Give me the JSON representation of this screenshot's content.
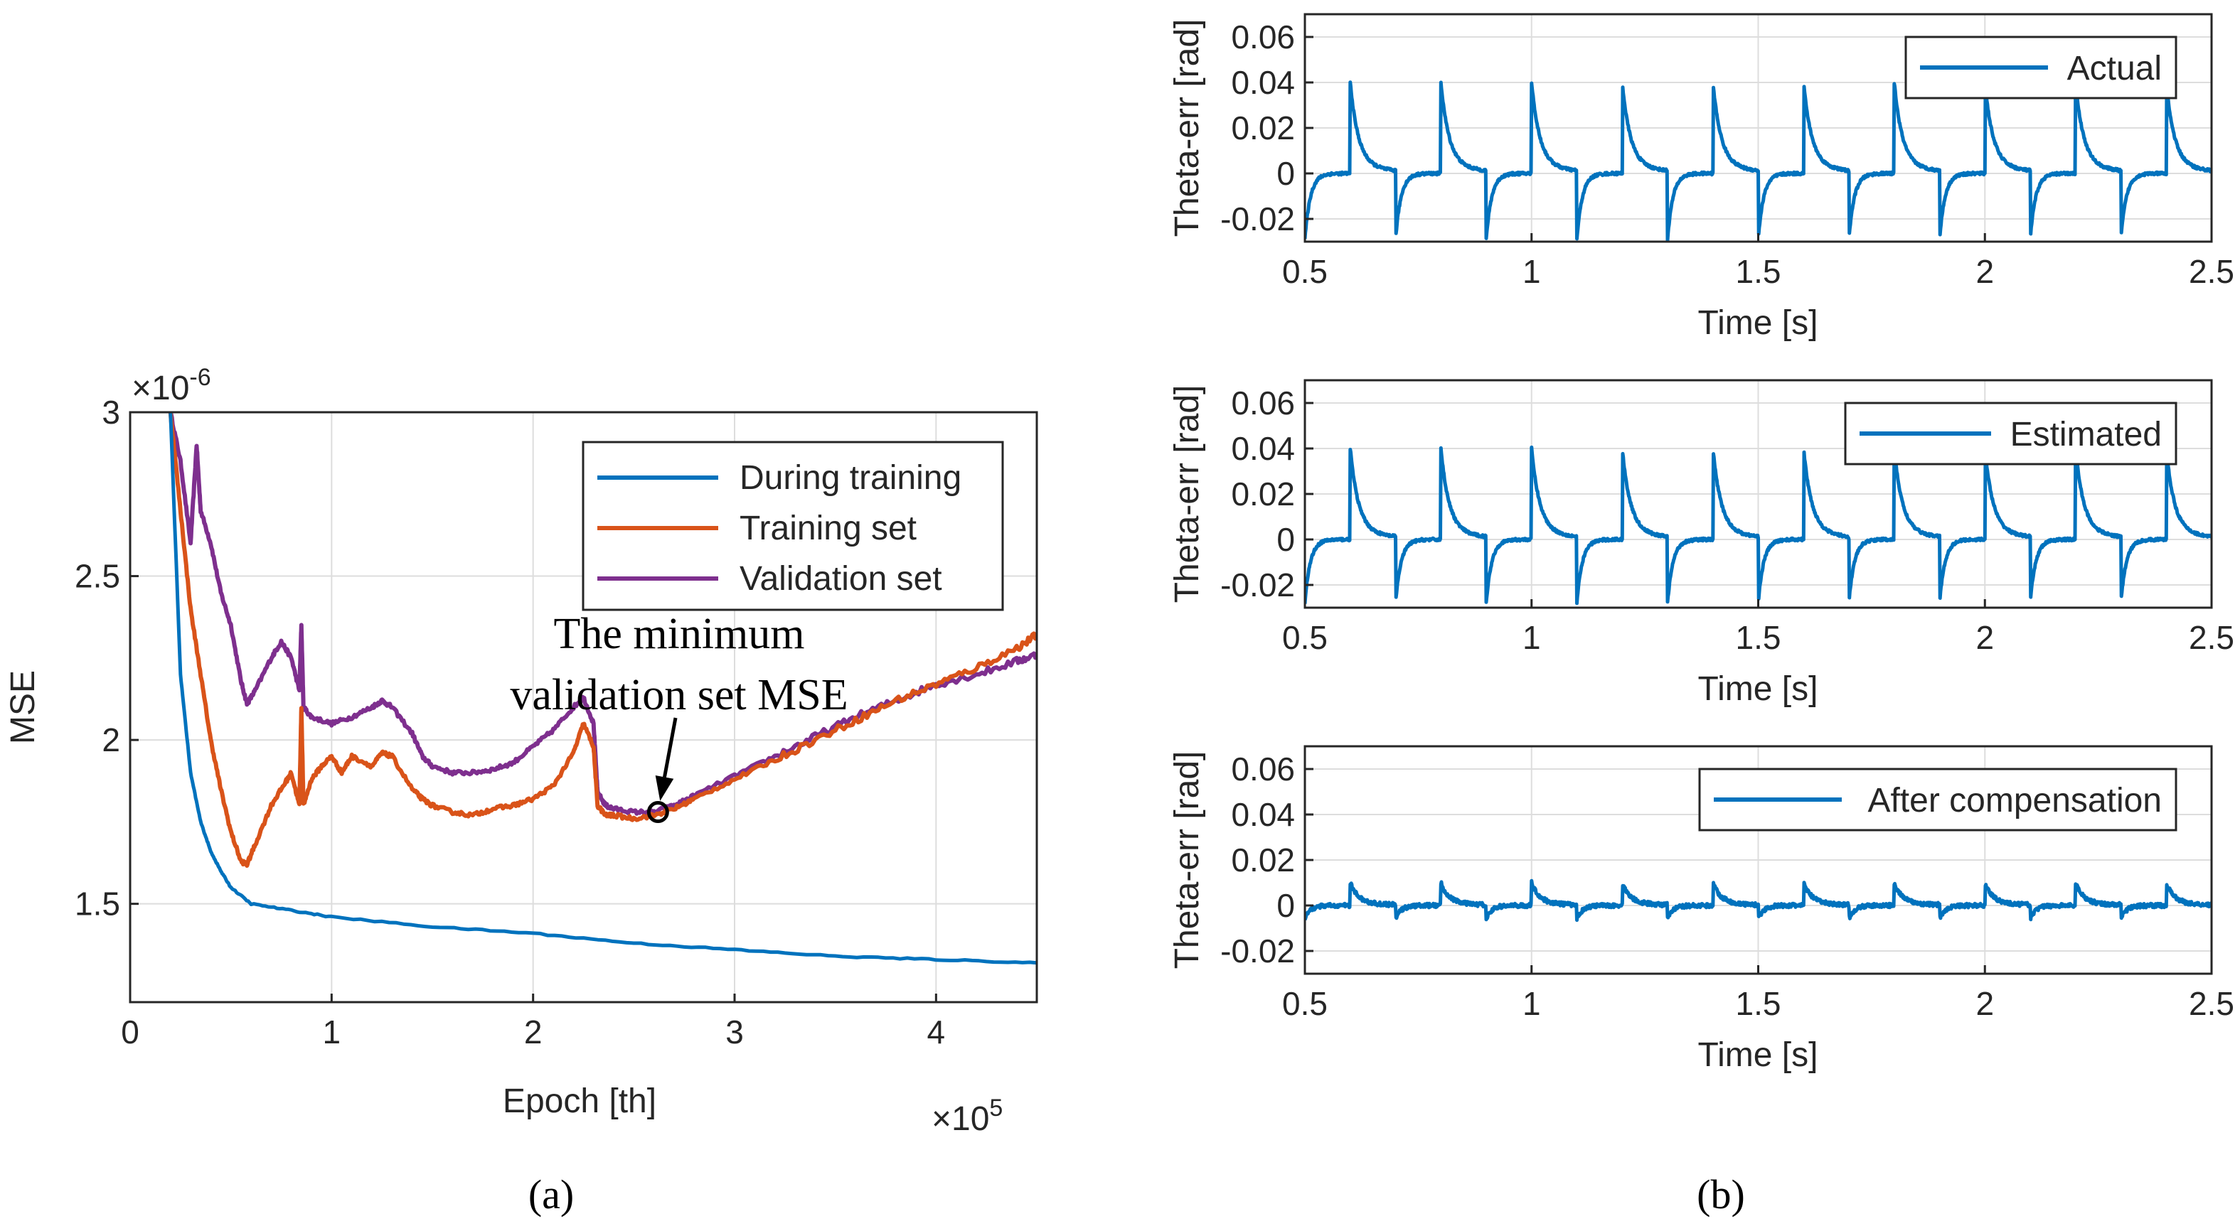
{
  "colors": {
    "blue": "#0072BD",
    "orange": "#D95319",
    "purple": "#7E2F8E",
    "grid": "#DDDDDD",
    "axis": "#262626"
  },
  "chart_data": [
    {
      "id": "a",
      "type": "line",
      "caption": "(a)",
      "xlabel": "Epoch [th]",
      "ylabel": "MSE",
      "y_multiplier": "×10",
      "y_multiplier_exp": "-6",
      "x_multiplier": "×10",
      "x_multiplier_exp": "5",
      "xlim": [
        0,
        4.5
      ],
      "ylim": [
        1.2,
        3.0
      ],
      "xticks": [
        0,
        1,
        2,
        3,
        4
      ],
      "xtick_labels": [
        "0",
        "1",
        "2",
        "3",
        "4"
      ],
      "yticks": [
        1.5,
        2.0,
        2.5,
        3.0
      ],
      "ytick_labels": [
        "1.5",
        "2",
        "2.5",
        "3"
      ],
      "grid": true,
      "legend_position": "top-right",
      "series": [
        {
          "name": "During training",
          "color": "#0072BD",
          "x": [
            0.2,
            0.25,
            0.3,
            0.35,
            0.4,
            0.45,
            0.5,
            0.6,
            0.8,
            1.0,
            1.5,
            2.0,
            2.5,
            3.0,
            3.5,
            4.0,
            4.5
          ],
          "y": [
            3.0,
            2.2,
            1.9,
            1.75,
            1.66,
            1.6,
            1.55,
            1.5,
            1.48,
            1.46,
            1.43,
            1.41,
            1.38,
            1.36,
            1.34,
            1.33,
            1.32
          ]
        },
        {
          "name": "Training set",
          "color": "#D95319",
          "x": [
            0.2,
            0.25,
            0.3,
            0.35,
            0.4,
            0.45,
            0.5,
            0.55,
            0.58,
            0.62,
            0.7,
            0.75,
            0.8,
            0.84,
            0.85,
            0.86,
            0.9,
            0.95,
            1.0,
            1.05,
            1.1,
            1.2,
            1.25,
            1.3,
            1.4,
            1.45,
            1.5,
            1.6,
            1.7,
            1.8,
            1.9,
            2.0,
            2.1,
            2.2,
            2.25,
            2.3,
            2.32,
            2.36,
            2.4,
            2.5,
            2.6,
            2.7,
            2.8,
            3.0,
            3.2,
            3.4,
            3.6,
            3.8,
            4.0,
            4.2,
            4.4,
            4.5
          ],
          "y": [
            3.0,
            2.7,
            2.4,
            2.2,
            2.0,
            1.85,
            1.72,
            1.63,
            1.62,
            1.68,
            1.8,
            1.85,
            1.9,
            1.8,
            2.1,
            1.8,
            1.88,
            1.92,
            1.95,
            1.9,
            1.95,
            1.92,
            1.96,
            1.95,
            1.85,
            1.82,
            1.8,
            1.78,
            1.77,
            1.79,
            1.8,
            1.82,
            1.86,
            1.96,
            2.05,
            1.98,
            1.8,
            1.77,
            1.77,
            1.76,
            1.77,
            1.79,
            1.82,
            1.88,
            1.94,
            2.0,
            2.06,
            2.12,
            2.17,
            2.22,
            2.28,
            2.32
          ]
        },
        {
          "name": "Validation set",
          "color": "#7E2F8E",
          "x": [
            0.2,
            0.25,
            0.3,
            0.33,
            0.35,
            0.4,
            0.45,
            0.5,
            0.55,
            0.58,
            0.62,
            0.7,
            0.75,
            0.8,
            0.84,
            0.85,
            0.86,
            0.9,
            1.0,
            1.1,
            1.2,
            1.25,
            1.3,
            1.4,
            1.45,
            1.5,
            1.6,
            1.7,
            1.8,
            1.9,
            2.0,
            2.1,
            2.2,
            2.25,
            2.3,
            2.32,
            2.36,
            2.4,
            2.5,
            2.6,
            2.7,
            2.8,
            3.0,
            3.2,
            3.4,
            3.6,
            3.8,
            4.0,
            4.2,
            4.4,
            4.5
          ],
          "y": [
            3.0,
            2.85,
            2.6,
            2.9,
            2.7,
            2.6,
            2.45,
            2.35,
            2.18,
            2.11,
            2.15,
            2.25,
            2.3,
            2.25,
            2.15,
            2.35,
            2.1,
            2.07,
            2.05,
            2.07,
            2.1,
            2.12,
            2.1,
            2.02,
            1.95,
            1.92,
            1.9,
            1.9,
            1.91,
            1.93,
            1.98,
            2.03,
            2.1,
            2.13,
            2.05,
            1.84,
            1.8,
            1.79,
            1.78,
            1.78,
            1.8,
            1.83,
            1.89,
            1.95,
            2.01,
            2.07,
            2.12,
            2.17,
            2.2,
            2.24,
            2.26
          ]
        }
      ],
      "annotation": {
        "text_line1": "The minimum",
        "text_line2": "validation set MSE",
        "marker_x": 2.62,
        "marker_y": 1.78
      }
    },
    {
      "id": "b1",
      "type": "line",
      "xlabel": "Time [s]",
      "ylabel": "Theta-err [rad]",
      "xlim": [
        0.5,
        2.5
      ],
      "ylim": [
        -0.03,
        0.07
      ],
      "xticks": [
        0.5,
        1,
        1.5,
        2,
        2.5
      ],
      "xtick_labels": [
        "0.5",
        "1",
        "1.5",
        "2",
        "2.5"
      ],
      "yticks": [
        -0.02,
        0,
        0.02,
        0.04,
        0.06
      ],
      "ytick_labels": [
        "-0.02",
        "0",
        "0.02",
        "0.04",
        "0.06"
      ],
      "grid": true,
      "legend_position": "top-right",
      "series": [
        {
          "name": "Actual",
          "color": "#0072BD",
          "period": 0.2,
          "pulse_starts": [
            0.6,
            0.8,
            1.0,
            1.2,
            1.4,
            1.6,
            1.8,
            2.0,
            2.2,
            2.4
          ],
          "negative_spikes": [
            0.5,
            0.7,
            0.9,
            1.1,
            1.3,
            1.5,
            1.7,
            1.9,
            2.1,
            2.3
          ],
          "peak": 0.036,
          "trough": -0.029,
          "baseline": 0.0
        }
      ]
    },
    {
      "id": "b2",
      "type": "line",
      "xlabel": "Time [s]",
      "ylabel": "Theta-err [rad]",
      "xlim": [
        0.5,
        2.5
      ],
      "ylim": [
        -0.03,
        0.07
      ],
      "xticks": [
        0.5,
        1,
        1.5,
        2,
        2.5
      ],
      "xtick_labels": [
        "0.5",
        "1",
        "1.5",
        "2",
        "2.5"
      ],
      "yticks": [
        -0.02,
        0,
        0.02,
        0.04,
        0.06
      ],
      "ytick_labels": [
        "-0.02",
        "0",
        "0.02",
        "0.04",
        "0.06"
      ],
      "grid": true,
      "legend_position": "top-right",
      "series": [
        {
          "name": "Estimated",
          "color": "#0072BD",
          "period": 0.2,
          "pulse_starts": [
            0.6,
            0.8,
            1.0,
            1.2,
            1.4,
            1.6,
            1.8,
            2.0,
            2.2,
            2.4
          ],
          "negative_spikes": [
            0.5,
            0.7,
            0.9,
            1.1,
            1.3,
            1.5,
            1.7,
            1.9,
            2.1,
            2.3
          ],
          "peak": 0.036,
          "trough": -0.028,
          "baseline": 0.0
        }
      ]
    },
    {
      "id": "b3",
      "type": "line",
      "caption": "(b)",
      "xlabel": "Time [s]",
      "ylabel": "Theta-err [rad]",
      "xlim": [
        0.5,
        2.5
      ],
      "ylim": [
        -0.03,
        0.07
      ],
      "xticks": [
        0.5,
        1,
        1.5,
        2,
        2.5
      ],
      "xtick_labels": [
        "0.5",
        "1",
        "1.5",
        "2",
        "2.5"
      ],
      "yticks": [
        -0.02,
        0,
        0.02,
        0.04,
        0.06
      ],
      "ytick_labels": [
        "-0.02",
        "0",
        "0.02",
        "0.04",
        "0.06"
      ],
      "grid": true,
      "legend_position": "top-right",
      "series": [
        {
          "name": "After compensation",
          "color": "#0072BD",
          "period": 0.2,
          "pulse_starts": [
            0.6,
            0.8,
            1.0,
            1.2,
            1.4,
            1.6,
            1.8,
            2.0,
            2.2,
            2.4
          ],
          "negative_spikes": [
            0.5,
            0.7,
            0.9,
            1.1,
            1.3,
            1.5,
            1.7,
            1.9,
            2.1,
            2.3
          ],
          "peak": 0.009,
          "trough": -0.006,
          "baseline": 0.0
        }
      ]
    }
  ]
}
